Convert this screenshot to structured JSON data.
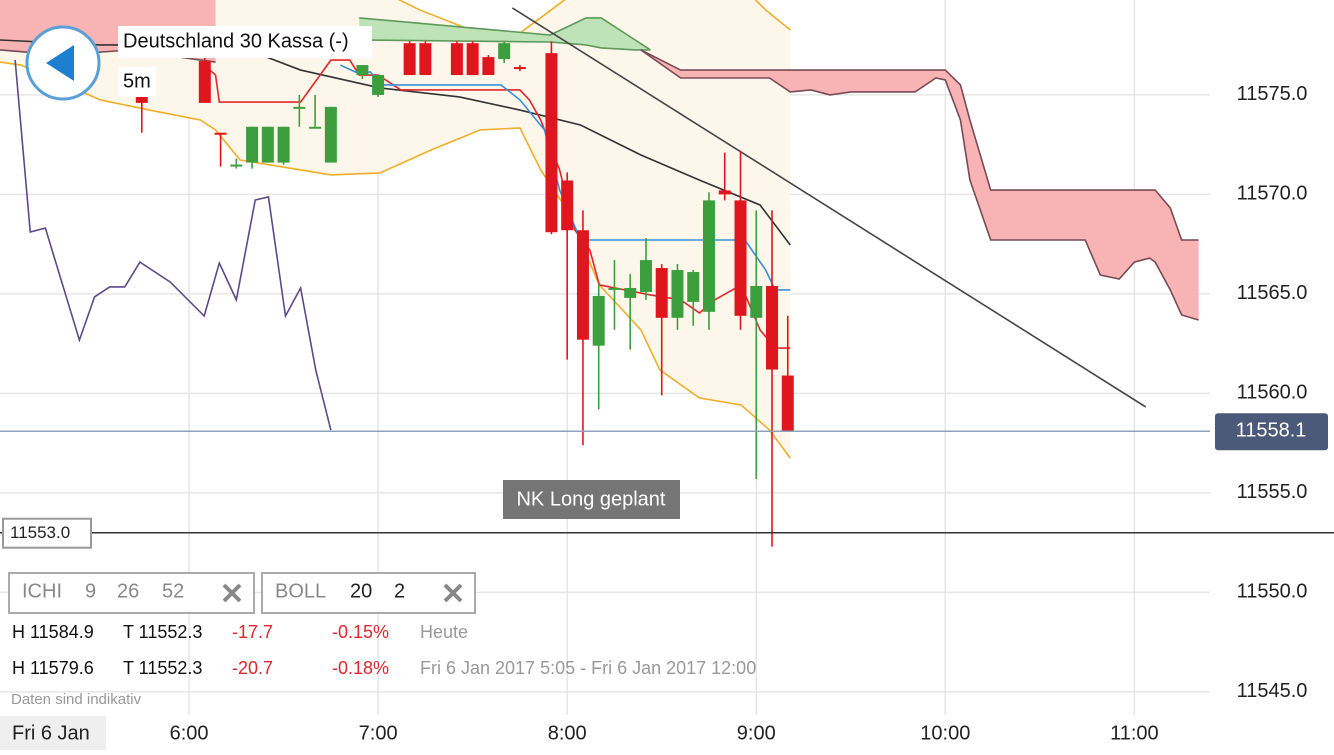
{
  "header": {
    "title": "Deutschland 30 Kassa (-)",
    "interval": "5m"
  },
  "chart_data": {
    "type": "candlestick",
    "xlim": [
      5,
      11.4
    ],
    "ylim": [
      11543.84,
      11579.77
    ],
    "xticks": [
      {
        "value": 6,
        "label": "6:00"
      },
      {
        "value": 7,
        "label": "7:00"
      },
      {
        "value": 8,
        "label": "8:00"
      },
      {
        "value": 9,
        "label": "9:00"
      },
      {
        "value": 10,
        "label": "10:00"
      },
      {
        "value": 11,
        "label": "11:00"
      }
    ],
    "yticks": [
      {
        "value": 11545,
        "label": "11545.0"
      },
      {
        "value": 11550,
        "label": "11550.0"
      },
      {
        "value": 11555,
        "label": "11555.0"
      },
      {
        "value": 11560,
        "label": "11560.0"
      },
      {
        "value": 11565,
        "label": "11565.0"
      },
      {
        "value": 11570,
        "label": "11570.0"
      },
      {
        "value": 11575,
        "label": "11575.0"
      }
    ],
    "grid": true,
    "date_label": "Fri 6 Jan",
    "up_color": "#3d9e3d",
    "down_color": "#e0161e",
    "candles": {
      "x": [
        5.75,
        6.0833,
        6.1667,
        6.25,
        6.3333,
        6.4167,
        6.5,
        6.5833,
        6.6667,
        6.75,
        6.9167,
        7,
        7.1667,
        7.25,
        7.4167,
        7.5,
        7.5833,
        7.6667,
        7.75,
        7.9167,
        8,
        8.0833,
        8.1667,
        8.25,
        8.3333,
        8.4167,
        8.5,
        8.5833,
        8.6667,
        8.75,
        8.8333,
        8.9167,
        9,
        9.0833,
        9.1667
      ],
      "open": [
        11575.0,
        11576.7,
        11573.1,
        11571.5,
        11571.6,
        11571.6,
        11571.6,
        11574.4,
        11573.4,
        11571.6,
        11576.0,
        11575.0,
        11577.6,
        11577.6,
        11577.6,
        11577.6,
        11576.9,
        11576.8,
        11576.4,
        11577.1,
        11570.7,
        11568.2,
        11562.4,
        11565.2,
        11564.8,
        11565.1,
        11566.3,
        11563.8,
        11564.6,
        11564.1,
        11570.2,
        11569.7,
        11563.8,
        11565.4,
        11560.9
      ],
      "high": [
        11575.2,
        11577.0,
        11573.1,
        11571.8,
        11573.4,
        11573.4,
        11573.4,
        11575.0,
        11575.0,
        11574.4,
        11576.5,
        11576.0,
        11577.7,
        11577.7,
        11577.7,
        11577.7,
        11577.0,
        11577.7,
        11576.5,
        11577.7,
        11571.1,
        11569.2,
        11565.5,
        11566.7,
        11566.0,
        11567.8,
        11566.5,
        11566.5,
        11566.2,
        11570.1,
        11572.1,
        11572.2,
        11569.2,
        11569.2,
        11563.9
      ],
      "low": [
        11573.1,
        11574.6,
        11571.4,
        11571.3,
        11571.3,
        11571.6,
        11571.5,
        11573.4,
        11573.4,
        11571.6,
        11575.8,
        11574.9,
        11576.0,
        11576.0,
        11576.0,
        11576.0,
        11576.0,
        11576.6,
        11576.2,
        11568.0,
        11561.7,
        11557.4,
        11559.2,
        11563.2,
        11562.2,
        11564.7,
        11559.9,
        11563.2,
        11563.4,
        11563.2,
        11569.7,
        11563.2,
        11555.7,
        11552.3,
        11558.1
      ],
      "close": [
        11574.6,
        11574.6,
        11573.0,
        11571.5,
        11573.4,
        11573.4,
        11573.4,
        11574.4,
        11573.4,
        11574.4,
        11576.5,
        11576.0,
        11576.0,
        11576.0,
        11576.0,
        11576.0,
        11576.0,
        11577.6,
        11576.3,
        11568.1,
        11568.2,
        11562.7,
        11564.9,
        11565.3,
        11565.3,
        11566.7,
        11563.8,
        11566.2,
        11566.1,
        11569.7,
        11570.0,
        11563.9,
        11565.4,
        11561.2,
        11558.1
      ]
    },
    "areas": [
      {
        "fill": "#fdf6ea",
        "stroke": "#f0ae28",
        "x_upper": [
          5.0,
          5.53,
          5.69,
          7.06,
          7.22,
          7.49,
          7.7,
          7.88,
          8.02,
          8.97,
          9.05,
          9.18
        ],
        "upper": [
          11579.27,
          11579.52,
          11580.02,
          11580.02,
          11579.27,
          11578.26,
          11577.76,
          11579.02,
          11580.02,
          11580.02,
          11579.27,
          11578.26
        ],
        "x_lower": [
          5.0,
          5.11,
          5.53,
          5.79,
          6.06,
          6.14,
          6.27,
          6.59,
          6.75,
          7.01,
          7.28,
          7.54,
          7.75,
          7.86,
          8.0,
          8.17,
          8.39,
          8.49,
          8.7,
          8.92,
          9.07,
          9.18
        ],
        "lower": [
          11576.65,
          11576.5,
          11574.75,
          11574.24,
          11573.74,
          11573.24,
          11571.73,
          11571.23,
          11570.98,
          11571.08,
          11572.23,
          11573.24,
          11573.34,
          11571.23,
          11569.22,
          11565.45,
          11563.19,
          11561.18,
          11559.77,
          11559.42,
          11558.16,
          11556.75
        ]
      },
      {
        "fill": "#f8b4b4",
        "stroke": "#7a4a55",
        "x_upper": [
          5.0,
          6.14
        ],
        "upper": [
          11580.5,
          11580.5
        ],
        "x_lower": [
          5.0,
          5.32,
          5.69,
          6.06,
          6.14
        ],
        "lower": [
          11577.26,
          11577.01,
          11577.26,
          11576.75,
          11576.65
        ]
      },
      {
        "fill": "#bfe3b8",
        "stroke": "#5d9a5a",
        "x_upper": [
          6.9,
          7.91,
          8.1,
          8.18,
          8.36,
          8.44
        ],
        "upper": [
          11578.87,
          11578.01,
          11578.87,
          11578.87,
          11577.76,
          11577.26
        ],
        "x_lower": [
          6.9,
          7.91,
          8.1,
          8.18,
          8.36,
          8.44
        ],
        "lower": [
          11577.76,
          11577.66,
          11577.51,
          11577.36,
          11577.26,
          11577.26
        ]
      },
      {
        "fill": "#f8b4b4",
        "stroke": "#7a4a55",
        "x_upper": [
          8.39,
          8.6,
          9.07,
          9.18,
          9.29,
          9.39,
          9.5,
          9.84,
          9.95,
          10.0,
          10.08,
          10.13,
          10.24,
          10.74,
          10.82,
          10.92,
          11.0,
          11.08,
          11.11,
          11.19,
          11.25,
          11.34
        ],
        "upper": [
          11577.26,
          11576.25,
          11576.25,
          11576.25,
          11576.25,
          11576.25,
          11576.25,
          11576.25,
          11576.25,
          11576.25,
          11575.5,
          11573.74,
          11570.22,
          11570.22,
          11570.22,
          11570.22,
          11570.22,
          11570.22,
          11570.22,
          11569.32,
          11567.71,
          11567.71
        ],
        "x_lower": [
          8.39,
          8.6,
          9.07,
          9.18,
          9.29,
          9.39,
          9.5,
          9.84,
          9.95,
          10.0,
          10.08,
          10.13,
          10.24,
          10.74,
          10.82,
          10.92,
          11.0,
          11.08,
          11.11,
          11.19,
          11.25,
          11.34
        ],
        "lower": [
          11577.26,
          11575.85,
          11575.85,
          11575.15,
          11575.25,
          11575.0,
          11575.15,
          11575.15,
          11575.85,
          11575.75,
          11573.74,
          11570.73,
          11567.71,
          11567.71,
          11565.95,
          11565.75,
          11566.6,
          11566.8,
          11566.6,
          11565.2,
          11563.94,
          11563.69
        ]
      }
    ],
    "lines": [
      {
        "color": "#333333",
        "x": [
          5.0,
          5.53,
          6.06,
          6.38,
          6.59,
          7.01,
          7.43,
          7.75,
          8.07,
          8.39,
          8.7,
          9.02,
          9.18
        ],
        "values": [
          11577.76,
          11577.51,
          11577.51,
          11577.01,
          11576.25,
          11575.35,
          11574.9,
          11574.24,
          11573.49,
          11571.98,
          11570.72,
          11569.47,
          11567.46
        ]
      },
      {
        "color": "#e0262e",
        "x": [
          6.06,
          6.14,
          6.16,
          6.59,
          6.75,
          6.85,
          6.9,
          7.0,
          7.12,
          7.75,
          7.8,
          7.86,
          7.96,
          8.04,
          8.12,
          8.17,
          8.44,
          8.6,
          8.7,
          8.78,
          8.92,
          9.02,
          9.1,
          9.18
        ],
        "values": [
          11576.65,
          11576.0,
          11574.64,
          11574.64,
          11576.75,
          11576.75,
          11576.0,
          11576.0,
          11575.25,
          11575.25,
          11574.75,
          11573.74,
          11571.23,
          11568.21,
          11567.21,
          11565.45,
          11564.95,
          11564.7,
          11564.04,
          11564.7,
          11565.45,
          11563.19,
          11562.28,
          11562.28
        ]
      },
      {
        "color": "#3b8fd9",
        "x": [
          6.8,
          6.88,
          6.96,
          7.01,
          7.65,
          7.75,
          7.88,
          7.96,
          8.07,
          8.94,
          9.05,
          9.1,
          9.18
        ],
        "values": [
          11576.5,
          11576.15,
          11576.15,
          11575.5,
          11575.5,
          11574.75,
          11573.24,
          11570.22,
          11567.71,
          11567.71,
          11566.2,
          11565.2,
          11565.2
        ]
      },
      {
        "color": "#5b4a8a",
        "x": [
          5.08,
          5.16,
          5.24,
          5.42,
          5.5,
          5.58,
          5.66,
          5.74,
          5.9,
          6.08,
          6.16,
          6.25,
          6.35,
          6.42,
          6.51,
          6.59,
          6.67,
          6.75
        ],
        "values": [
          11576.75,
          11568.11,
          11568.31,
          11562.68,
          11564.85,
          11565.35,
          11565.35,
          11566.6,
          11565.6,
          11563.89,
          11566.55,
          11564.7,
          11569.72,
          11569.87,
          11563.89,
          11565.3,
          11561.18,
          11558.16
        ]
      },
      {
        "color": "#444444",
        "x": [
          7.71,
          11.06
        ],
        "values": [
          11579.37,
          11559.32
        ]
      }
    ],
    "last_price": 11558.1,
    "last_price_color": "#8fa2bb",
    "last_price_box": "#4b5a78",
    "marker_line": {
      "value": 11553,
      "label": "11553.0"
    },
    "annotation": "NK Long geplant"
  },
  "indicators": [
    {
      "name": "ICHI",
      "params": [
        "9",
        "26",
        "52"
      ]
    },
    {
      "name": "BOLL",
      "params": [
        "20",
        "2"
      ]
    }
  ],
  "stats": [
    {
      "high": "H 11584.9",
      "low": "T 11552.3",
      "change": "-17.7",
      "percent": "-0.15%",
      "period": "Heute"
    },
    {
      "high": "H 11579.6",
      "low": "T 11552.3",
      "change": "-20.7",
      "percent": "-0.18%",
      "period": "Fri 6 Jan 2017 5:05 - Fri 6 Jan 2017 12:00"
    }
  ],
  "footnote": "Daten sind indikativ"
}
